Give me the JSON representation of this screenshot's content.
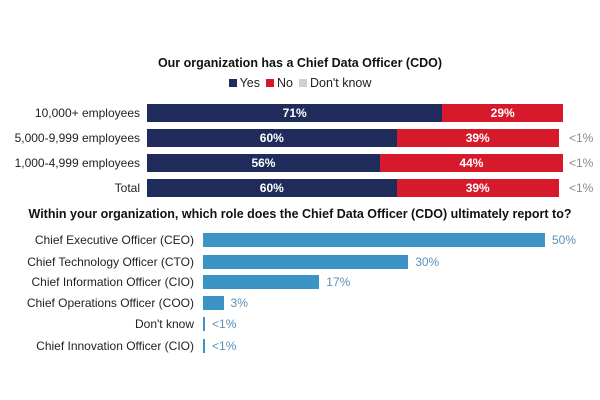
{
  "chart_data": [
    {
      "type": "bar",
      "orientation": "horizontal",
      "stacked": true,
      "title": "Our organization has a Chief Data Officer (CDO)",
      "legend": [
        "Yes",
        "No",
        "Don't know"
      ],
      "legend_position": "top",
      "categories": [
        "10,000+ employees",
        "5,000-9,999 employees",
        "1,000-4,999 employees",
        "Total"
      ],
      "series": [
        {
          "name": "Yes",
          "color": "#1f2b5b",
          "values": [
            71,
            60,
            56,
            60
          ],
          "labels": [
            "71%",
            "60%",
            "56%",
            "60%"
          ]
        },
        {
          "name": "No",
          "color": "#d61a2c",
          "values": [
            29,
            39,
            44,
            39
          ],
          "labels": [
            "29%",
            "39%",
            "44%",
            "39%"
          ]
        },
        {
          "name": "Don't know",
          "color": "#d0d0d0",
          "values": [
            0,
            0.5,
            0.5,
            0.5
          ],
          "labels": [
            "",
            "<1%",
            "<1%",
            "<1%"
          ]
        }
      ],
      "xlim": [
        0,
        100
      ]
    },
    {
      "type": "bar",
      "orientation": "horizontal",
      "title": "Within your organization, which role does the Chief Data Officer (CDO) ultimately report to?",
      "color": "#3b93c6",
      "categories": [
        "Chief Executive Officer (CEO)",
        "Chief Technology Officer (CTO)",
        "Chief Information Officer (CIO)",
        "Chief Operations Officer (COO)",
        "Don't know",
        "Chief Innovation Officer (CIO)"
      ],
      "values": [
        50,
        30,
        17,
        3,
        0.3,
        0.3
      ],
      "labels": [
        "50%",
        "30%",
        "17%",
        "3%",
        "<1%",
        "<1%"
      ],
      "xlim": [
        0,
        50
      ]
    }
  ]
}
